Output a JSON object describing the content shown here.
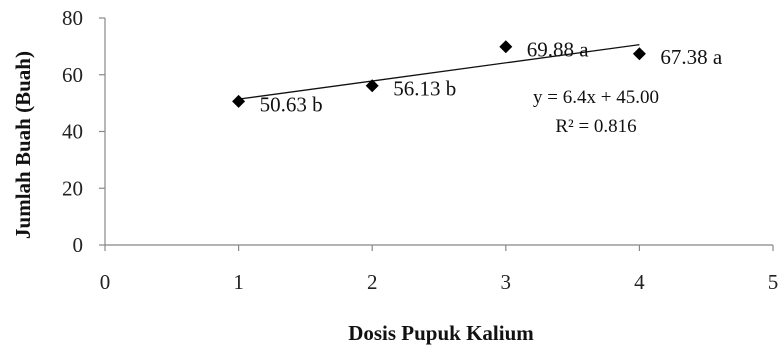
{
  "chart_data": {
    "type": "scatter",
    "title": "",
    "xlabel": "Dosis Pupuk Kalium",
    "ylabel": "Jumlah Buah (Buah)",
    "xlim": [
      0,
      5
    ],
    "ylim": [
      0,
      80
    ],
    "x_ticks": [
      "0",
      "1",
      "2",
      "3",
      "4",
      "5"
    ],
    "y_ticks": [
      "0",
      "20",
      "40",
      "60",
      "80"
    ],
    "grid": false,
    "legend": "none",
    "series": [
      {
        "marker": "diamond",
        "color": "#000000",
        "points": [
          {
            "x": 1,
            "y": 50.63,
            "label": "50.63 b"
          },
          {
            "x": 2,
            "y": 56.13,
            "label": "56.13 b"
          },
          {
            "x": 3,
            "y": 69.88,
            "label": "69.88 a"
          },
          {
            "x": 4,
            "y": 67.38,
            "label": "67.38 a"
          }
        ]
      }
    ],
    "trendline": {
      "slope": 6.4,
      "intercept": 45.0,
      "x_range": [
        1,
        4
      ],
      "equation": "y = 6.4x + 45.00",
      "r2": "R² = 0.816"
    }
  }
}
